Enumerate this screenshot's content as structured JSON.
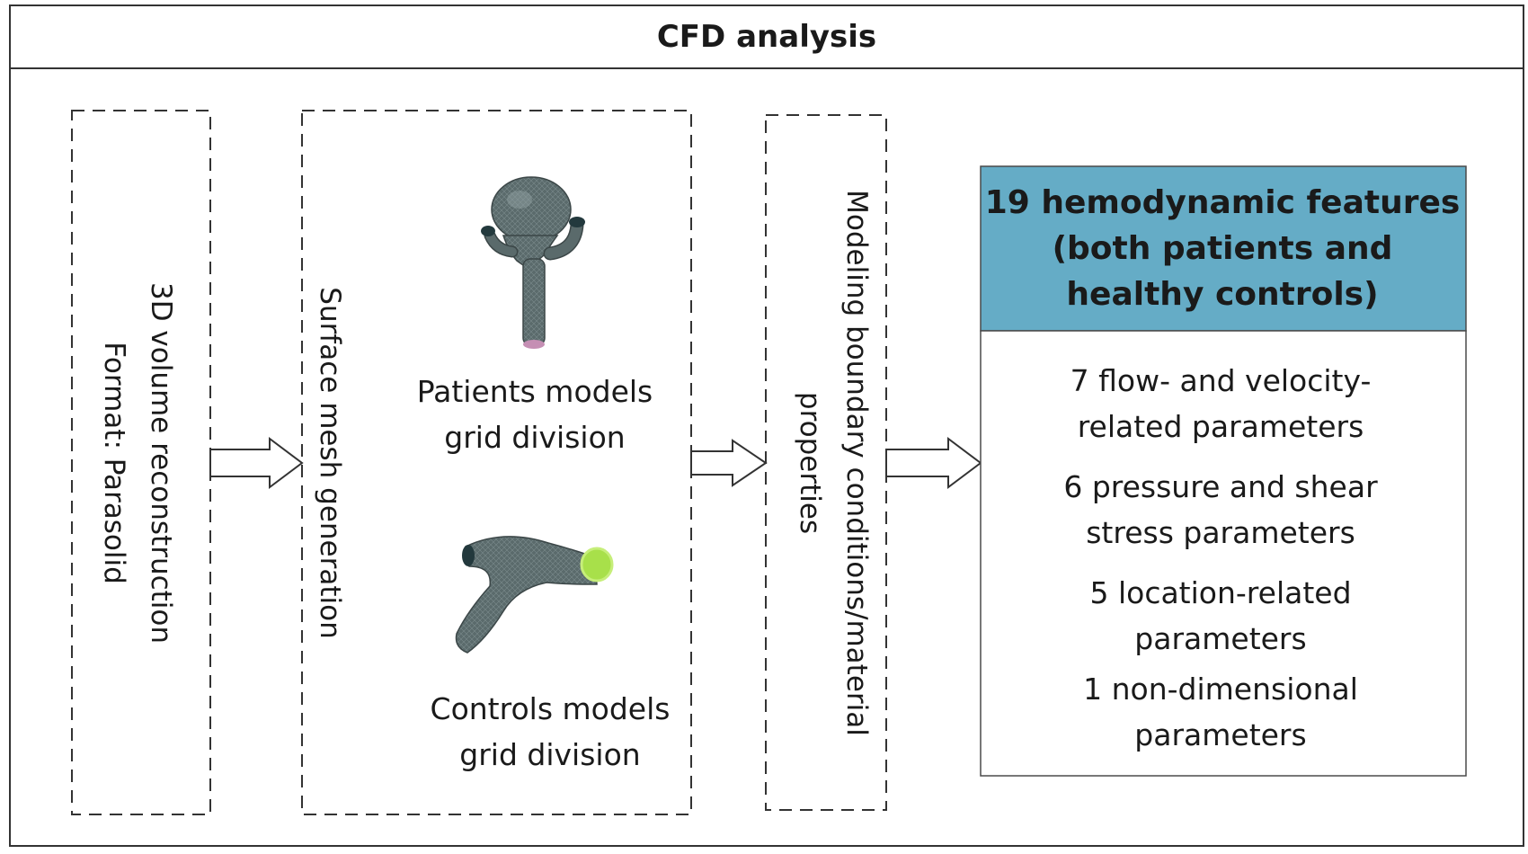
{
  "title": "CFD analysis",
  "steps": {
    "reconstruction": {
      "line1": "3D volume reconstruction",
      "line2": "Format: Parasolid"
    },
    "mesh": {
      "heading": "Surface mesh generation",
      "patients_line1": "Patients  models",
      "patients_line2": "grid division",
      "controls_line1": "Controls models",
      "controls_line2": "grid division"
    },
    "modeling": {
      "line1": "Modeling boundary conditions/material",
      "line2": "properties"
    }
  },
  "features": {
    "title_line1": "19 hemodynamic features",
    "title_line2": "(both patients and",
    "title_line3": "healthy controls)",
    "items": [
      {
        "line1": "7 flow- and velocity-",
        "line2": "related parameters"
      },
      {
        "line1": "6 pressure and shear",
        "line2": "stress parameters"
      },
      {
        "line1": "5 location-related",
        "line2": "parameters"
      },
      {
        "line1": "1 non-dimensional",
        "line2": "parameters"
      }
    ]
  },
  "colors": {
    "header_fill": "#65acc6",
    "mesh_surface": "#4f5d5e",
    "outlet_green": "#a8e04a",
    "outlet_pink": "#c58fb4"
  }
}
